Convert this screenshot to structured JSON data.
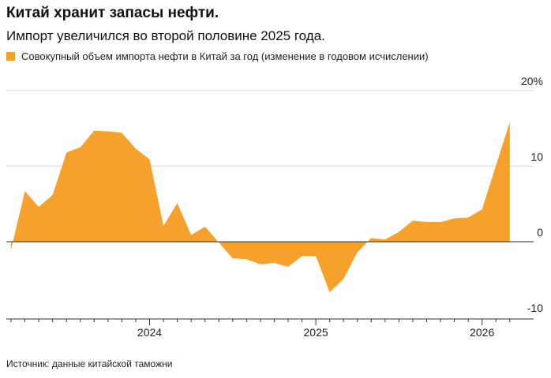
{
  "chart_data": {
    "type": "area",
    "title": "Китай хранит запасы нефти.",
    "subtitle": "Импорт увеличился во второй половине 2025 года.",
    "source": "Источник: данные китайской таможни",
    "categories": [
      null,
      null,
      null,
      null,
      null,
      null,
      null,
      null,
      null,
      null,
      "2024",
      null,
      null,
      null,
      null,
      null,
      null,
      null,
      null,
      null,
      null,
      null,
      "2025",
      null,
      null,
      null,
      null,
      null,
      null,
      null,
      null,
      null,
      null,
      null,
      "2026",
      null,
      null
    ],
    "series": [
      {
        "name": "Совокупный объем импорта нефти в Китай за год (изменение в годовом исчислении)",
        "color": "#f7a12d",
        "values": [
          -1,
          6.7,
          4.6,
          6.2,
          11.8,
          12.5,
          14.7,
          14.6,
          14.4,
          12.3,
          10.9,
          2.1,
          5.1,
          0.9,
          2.0,
          -0.1,
          -2.2,
          -2.3,
          -3.0,
          -2.8,
          -3.3,
          -1.9,
          -1.9,
          -6.7,
          -4.9,
          -1.4,
          0.5,
          0.3,
          1.3,
          2.8,
          2.6,
          2.6,
          3.1,
          3.2,
          4.3,
          10.1,
          15.8
        ]
      }
    ],
    "ylim": [
      -10,
      20
    ],
    "yticks": [
      -10,
      0,
      10,
      {
        "value": 20,
        "label": "20%"
      }
    ],
    "grid": true
  }
}
